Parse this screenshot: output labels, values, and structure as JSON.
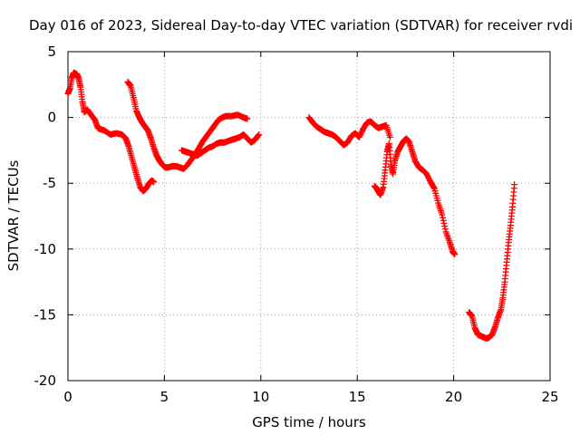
{
  "chart_data": {
    "type": "scatter",
    "title": "Day 016 of 2023, Sidereal Day-to-day VTEC variation (SDTVAR) for receiver rvdi",
    "xlabel": "GPS time / hours",
    "ylabel": "SDTVAR / TECUs",
    "xlim": [
      0,
      25
    ],
    "ylim": [
      -20,
      5
    ],
    "xticks": [
      0,
      5,
      10,
      15,
      20,
      25
    ],
    "yticks": [
      -20,
      -15,
      -10,
      -5,
      0,
      5
    ],
    "grid": true,
    "marker": "+",
    "series": [
      {
        "name": "segment-1",
        "color": "#ff0000",
        "points": [
          [
            0,
            1.8
          ],
          [
            0.1,
            2.2
          ],
          [
            0.2,
            3.0
          ],
          [
            0.3,
            3.4
          ],
          [
            0.45,
            3.3
          ],
          [
            0.55,
            3.0
          ],
          [
            0.65,
            2.3
          ],
          [
            0.75,
            1.2
          ],
          [
            0.85,
            0.4
          ],
          [
            1.0,
            0.6
          ],
          [
            1.2,
            0.2
          ],
          [
            1.4,
            -0.2
          ],
          [
            1.55,
            -0.8
          ],
          [
            1.7,
            -0.9
          ],
          [
            1.9,
            -1.0
          ],
          [
            2.2,
            -1.3
          ],
          [
            2.5,
            -1.2
          ],
          [
            2.8,
            -1.3
          ],
          [
            3.0,
            -1.6
          ],
          [
            3.15,
            -2.2
          ],
          [
            3.3,
            -3.0
          ],
          [
            3.45,
            -3.8
          ],
          [
            3.6,
            -4.6
          ],
          [
            3.75,
            -5.3
          ],
          [
            3.9,
            -5.6
          ],
          [
            4.05,
            -5.4
          ],
          [
            4.2,
            -5.0
          ],
          [
            4.35,
            -4.8
          ],
          [
            4.45,
            -4.9
          ]
        ]
      },
      {
        "name": "segment-2",
        "color": "#ff0000",
        "points": [
          [
            3.1,
            2.7
          ],
          [
            3.25,
            2.4
          ],
          [
            3.4,
            1.5
          ],
          [
            3.55,
            0.5
          ],
          [
            3.7,
            0
          ],
          [
            3.85,
            -0.4
          ],
          [
            4.0,
            -0.7
          ],
          [
            4.15,
            -1.0
          ],
          [
            4.3,
            -1.6
          ],
          [
            4.45,
            -2.3
          ],
          [
            4.6,
            -2.9
          ],
          [
            4.75,
            -3.3
          ],
          [
            4.9,
            -3.6
          ],
          [
            5.05,
            -3.8
          ],
          [
            5.2,
            -3.8
          ],
          [
            5.4,
            -3.7
          ],
          [
            5.6,
            -3.7
          ],
          [
            5.8,
            -3.8
          ],
          [
            6.0,
            -3.9
          ],
          [
            6.2,
            -3.6
          ],
          [
            6.4,
            -3.2
          ],
          [
            6.6,
            -2.8
          ],
          [
            6.8,
            -2.3
          ],
          [
            7.0,
            -1.8
          ],
          [
            7.2,
            -1.4
          ],
          [
            7.4,
            -1.0
          ],
          [
            7.6,
            -0.6
          ],
          [
            7.8,
            -0.2
          ],
          [
            8.0,
            0
          ],
          [
            8.2,
            0.1
          ],
          [
            8.5,
            0.1
          ],
          [
            8.8,
            0.2
          ],
          [
            9.1,
            0.0
          ],
          [
            9.3,
            -0.1
          ]
        ]
      },
      {
        "name": "segment-3",
        "color": "#ff0000",
        "points": [
          [
            5.9,
            -2.5
          ],
          [
            6.1,
            -2.6
          ],
          [
            6.3,
            -2.7
          ],
          [
            6.5,
            -2.8
          ],
          [
            6.7,
            -2.9
          ],
          [
            6.9,
            -2.7
          ],
          [
            7.1,
            -2.5
          ],
          [
            7.3,
            -2.3
          ],
          [
            7.5,
            -2.2
          ],
          [
            7.7,
            -2.0
          ],
          [
            7.9,
            -1.9
          ],
          [
            8.1,
            -1.9
          ],
          [
            8.3,
            -1.8
          ],
          [
            8.5,
            -1.7
          ],
          [
            8.7,
            -1.6
          ],
          [
            8.9,
            -1.5
          ],
          [
            9.1,
            -1.3
          ],
          [
            9.3,
            -1.6
          ],
          [
            9.5,
            -1.9
          ],
          [
            9.7,
            -1.7
          ],
          [
            9.9,
            -1.3
          ]
        ]
      },
      {
        "name": "segment-4",
        "color": "#ff0000",
        "points": [
          [
            12.5,
            0
          ],
          [
            12.7,
            -0.4
          ],
          [
            12.9,
            -0.7
          ],
          [
            13.1,
            -0.9
          ],
          [
            13.3,
            -1.1
          ],
          [
            13.5,
            -1.2
          ],
          [
            13.7,
            -1.3
          ],
          [
            13.9,
            -1.5
          ],
          [
            14.1,
            -1.8
          ],
          [
            14.3,
            -2.1
          ],
          [
            14.5,
            -1.9
          ],
          [
            14.7,
            -1.4
          ],
          [
            14.9,
            -1.2
          ],
          [
            15.1,
            -1.5
          ],
          [
            15.3,
            -0.9
          ],
          [
            15.5,
            -0.4
          ],
          [
            15.7,
            -0.3
          ],
          [
            15.9,
            -0.6
          ],
          [
            16.1,
            -0.8
          ],
          [
            16.3,
            -0.7
          ],
          [
            16.5,
            -0.6
          ],
          [
            16.7,
            -1.5
          ]
        ]
      },
      {
        "name": "segment-5",
        "color": "#ff0000",
        "points": [
          [
            15.9,
            -5.2
          ],
          [
            16.05,
            -5.5
          ],
          [
            16.2,
            -5.9
          ],
          [
            16.35,
            -5.3
          ],
          [
            16.45,
            -4.0
          ],
          [
            16.55,
            -2.6
          ],
          [
            16.65,
            -2.0
          ],
          [
            16.75,
            -3.6
          ],
          [
            16.85,
            -4.3
          ],
          [
            16.95,
            -3.3
          ],
          [
            17.1,
            -2.6
          ],
          [
            17.25,
            -2.2
          ],
          [
            17.4,
            -1.8
          ],
          [
            17.55,
            -1.6
          ],
          [
            17.7,
            -1.9
          ],
          [
            17.85,
            -2.6
          ],
          [
            18.0,
            -3.3
          ],
          [
            18.2,
            -3.8
          ],
          [
            18.4,
            -4.0
          ],
          [
            18.6,
            -4.3
          ],
          [
            18.8,
            -4.9
          ],
          [
            19.0,
            -5.4
          ],
          [
            19.2,
            -6.5
          ],
          [
            19.4,
            -7.4
          ],
          [
            19.6,
            -8.7
          ],
          [
            19.8,
            -9.5
          ],
          [
            19.95,
            -10.2
          ],
          [
            20.05,
            -10.4
          ]
        ]
      },
      {
        "name": "segment-6",
        "color": "#ff0000",
        "points": [
          [
            20.8,
            -14.8
          ],
          [
            20.95,
            -15.1
          ],
          [
            21.1,
            -16.0
          ],
          [
            21.25,
            -16.5
          ],
          [
            21.4,
            -16.6
          ],
          [
            21.55,
            -16.7
          ],
          [
            21.7,
            -16.8
          ],
          [
            21.85,
            -16.7
          ],
          [
            22.0,
            -16.5
          ],
          [
            22.15,
            -15.9
          ],
          [
            22.3,
            -15.2
          ],
          [
            22.45,
            -14.6
          ],
          [
            22.55,
            -13.7
          ],
          [
            22.65,
            -12.5
          ],
          [
            22.75,
            -11.0
          ],
          [
            22.85,
            -9.5
          ],
          [
            22.95,
            -8.2
          ],
          [
            23.05,
            -6.8
          ],
          [
            23.15,
            -5.1
          ]
        ]
      }
    ]
  }
}
